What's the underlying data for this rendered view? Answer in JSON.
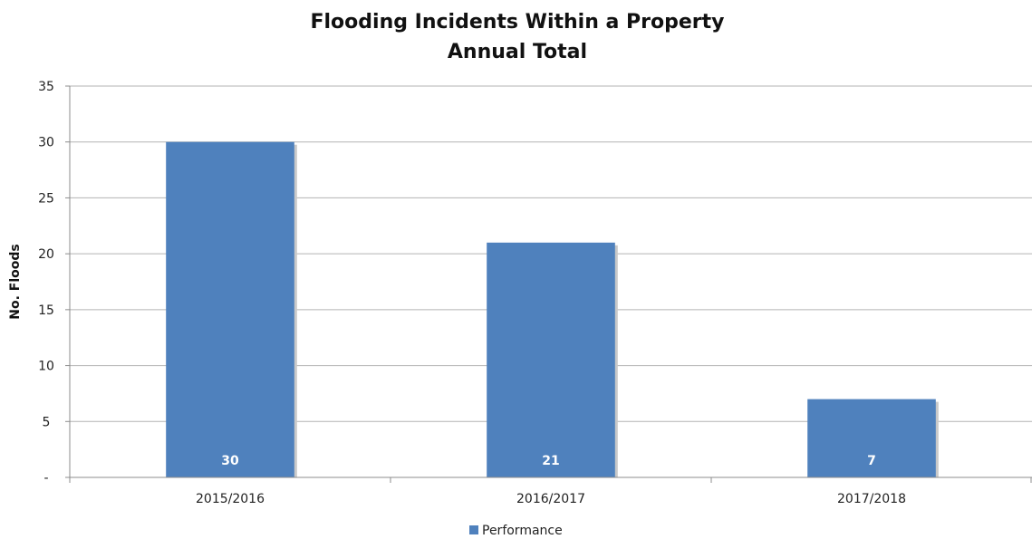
{
  "chart_data": {
    "type": "bar",
    "title": "Flooding Incidents Within a Property",
    "subtitle": "Annual Total",
    "xlabel": "",
    "ylabel": "No. Floods",
    "categories": [
      "2015/2016",
      "2016/2017",
      "2017/2018"
    ],
    "series": [
      {
        "name": "Performance",
        "values": [
          30,
          21,
          7
        ],
        "color": "#4f81bd"
      }
    ],
    "data_labels": [
      "30",
      "21",
      "7"
    ],
    "ylim": [
      0,
      35
    ],
    "y_ticks": [
      0,
      5,
      10,
      15,
      20,
      25,
      30,
      35
    ],
    "y_tick_labels": [
      "-",
      "5",
      "10",
      "15",
      "20",
      "25",
      "30",
      "35"
    ],
    "grid": true,
    "legend": "bottom"
  }
}
